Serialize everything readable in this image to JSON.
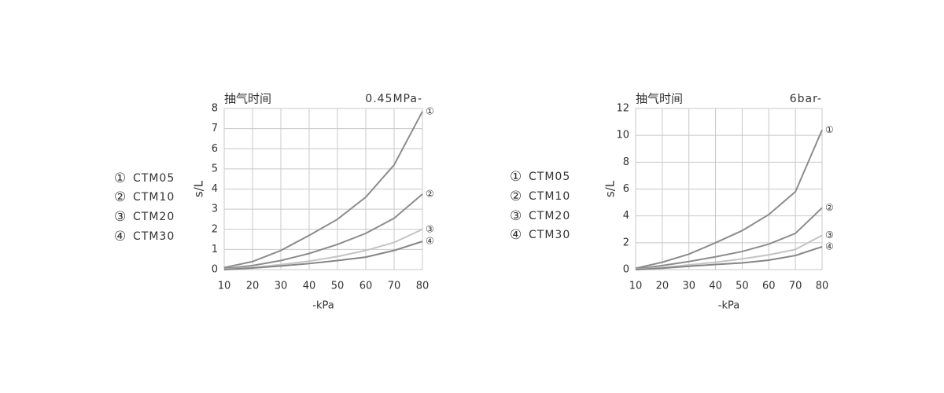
{
  "chart_data": [
    {
      "type": "line",
      "title": "抽气时间",
      "subtitle": "0.45MPa-",
      "x_label": "-kPa",
      "y_label": "s/L",
      "x": [
        10,
        20,
        30,
        40,
        50,
        60,
        70,
        80
      ],
      "xlim": [
        10,
        80
      ],
      "xticks": [
        10,
        20,
        30,
        40,
        50,
        60,
        70,
        80
      ],
      "ylim": [
        0,
        8
      ],
      "yticks": [
        0,
        1,
        2,
        3,
        4,
        5,
        6,
        7,
        8
      ],
      "grid": true,
      "series": [
        {
          "name": "CTM05",
          "symbol": "①",
          "color": "#8c8c8c",
          "values": [
            0.1,
            0.4,
            0.95,
            1.7,
            2.5,
            3.6,
            5.2,
            7.85
          ]
        },
        {
          "name": "CTM10",
          "symbol": "②",
          "color": "#8c8c8c",
          "values": [
            0.05,
            0.2,
            0.45,
            0.8,
            1.25,
            1.8,
            2.55,
            3.75
          ]
        },
        {
          "name": "CTM20",
          "symbol": "③",
          "color": "#c4c4c4",
          "values": [
            0.02,
            0.1,
            0.25,
            0.42,
            0.65,
            0.95,
            1.35,
            2.0
          ]
        },
        {
          "name": "CTM30",
          "symbol": "④",
          "color": "#858585",
          "values": [
            0.0,
            0.08,
            0.18,
            0.3,
            0.45,
            0.62,
            0.95,
            1.4
          ]
        }
      ]
    },
    {
      "type": "line",
      "title": "抽气时间",
      "subtitle": "6bar-",
      "x_label": "-kPa",
      "y_label": "s/L",
      "x": [
        10,
        20,
        30,
        40,
        50,
        60,
        70,
        80
      ],
      "xlim": [
        10,
        80
      ],
      "xticks": [
        10,
        20,
        30,
        40,
        50,
        60,
        70,
        80
      ],
      "ylim": [
        0,
        12
      ],
      "yticks": [
        0,
        2,
        4,
        6,
        8,
        10,
        12
      ],
      "grid": true,
      "series": [
        {
          "name": "CTM05",
          "symbol": "①",
          "color": "#8c8c8c",
          "values": [
            0.1,
            0.55,
            1.15,
            2.0,
            2.9,
            4.1,
            5.8,
            10.4
          ]
        },
        {
          "name": "CTM10",
          "symbol": "②",
          "color": "#8c8c8c",
          "values": [
            0.05,
            0.3,
            0.6,
            0.95,
            1.35,
            1.9,
            2.7,
            4.6
          ]
        },
        {
          "name": "CTM20",
          "symbol": "③",
          "color": "#c4c4c4",
          "values": [
            0.02,
            0.15,
            0.35,
            0.55,
            0.8,
            1.1,
            1.5,
            2.55
          ]
        },
        {
          "name": "CTM30",
          "symbol": "④",
          "color": "#858585",
          "values": [
            0.0,
            0.1,
            0.25,
            0.38,
            0.5,
            0.7,
            1.05,
            1.7
          ]
        }
      ]
    }
  ]
}
